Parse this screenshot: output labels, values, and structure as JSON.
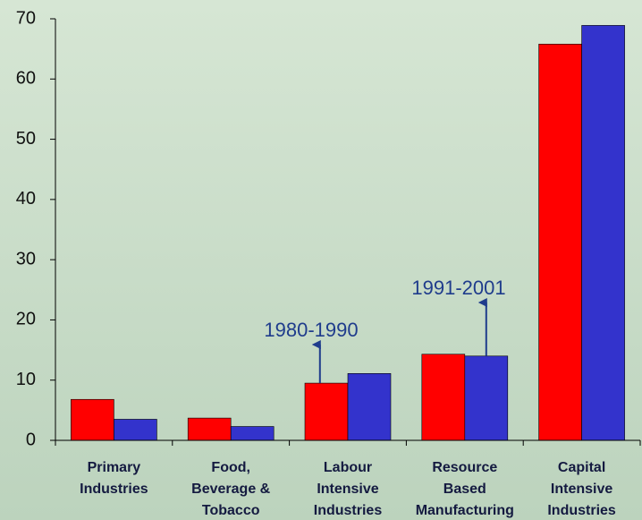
{
  "chart_data": {
    "type": "bar",
    "categories": [
      [
        "Primary",
        "Industries"
      ],
      [
        "Food,",
        "Beverage &",
        "Tobacco"
      ],
      [
        "Labour",
        "Intensive",
        "Industries"
      ],
      [
        "Resource",
        "Based",
        "Manufacturing"
      ],
      [
        "Capital",
        "Intensive",
        "Industries"
      ]
    ],
    "series": [
      {
        "name": "1980-1990",
        "color": "#ff0000",
        "values": [
          6.8,
          3.7,
          9.5,
          14.3,
          65.8
        ]
      },
      {
        "name": "1991-2001",
        "color": "#3333cc",
        "values": [
          3.5,
          2.3,
          11.1,
          14.0,
          68.9
        ]
      }
    ],
    "ylim": [
      0,
      70
    ],
    "yticks": [
      0,
      10,
      20,
      30,
      40,
      50,
      60,
      70
    ],
    "grid": false
  }
}
